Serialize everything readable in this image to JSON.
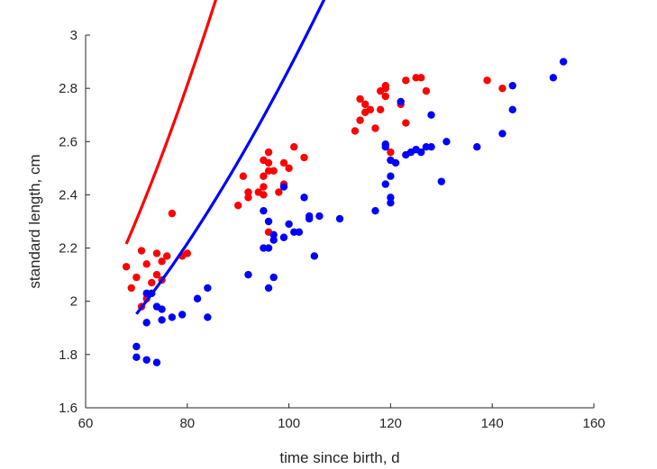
{
  "chart_data": {
    "type": "scatter",
    "xlabel": "time since birth, d",
    "ylabel": "standard length, cm",
    "xlim": [
      60,
      160
    ],
    "ylim": [
      1.6,
      3.0
    ],
    "xticks": [
      60,
      80,
      100,
      120,
      140,
      160
    ],
    "yticks": [
      1.6,
      1.8,
      2.0,
      2.2,
      2.4,
      2.6,
      2.8,
      3.0
    ],
    "xtick_labels": [
      "60",
      "80",
      "100",
      "120",
      "140",
      "160"
    ],
    "ytick_labels": [
      "1.6",
      "1.8",
      "2",
      "2.2",
      "2.4",
      "2.6",
      "2.8",
      "3"
    ],
    "grid": false,
    "series": [
      {
        "color": "#ff0000",
        "points": [
          [
            68,
            2.13
          ],
          [
            69,
            2.05
          ],
          [
            70,
            2.09
          ],
          [
            71,
            2.19
          ],
          [
            71,
            1.98
          ],
          [
            72,
            2.14
          ],
          [
            72,
            2.01
          ],
          [
            73,
            2.07
          ],
          [
            74,
            2.18
          ],
          [
            74,
            2.1
          ],
          [
            75,
            2.15
          ],
          [
            75,
            2.08
          ],
          [
            76,
            2.17
          ],
          [
            77,
            2.33
          ],
          [
            79,
            2.17
          ],
          [
            80,
            2.18
          ],
          [
            90,
            2.36
          ],
          [
            91,
            2.47
          ],
          [
            92,
            2.41
          ],
          [
            92,
            2.39
          ],
          [
            94,
            2.41
          ],
          [
            95,
            2.43
          ],
          [
            95,
            2.47
          ],
          [
            95,
            2.53
          ],
          [
            95,
            2.4
          ],
          [
            96,
            2.49
          ],
          [
            96,
            2.52
          ],
          [
            96,
            2.56
          ],
          [
            96,
            2.26
          ],
          [
            97,
            2.49
          ],
          [
            98,
            2.41
          ],
          [
            99,
            2.52
          ],
          [
            99,
            2.44
          ],
          [
            100,
            2.5
          ],
          [
            101,
            2.58
          ],
          [
            103,
            2.54
          ],
          [
            113,
            2.64
          ],
          [
            114,
            2.76
          ],
          [
            114,
            2.68
          ],
          [
            115,
            2.71
          ],
          [
            115,
            2.74
          ],
          [
            116,
            2.72
          ],
          [
            117,
            2.65
          ],
          [
            118,
            2.79
          ],
          [
            118,
            2.72
          ],
          [
            119,
            2.8
          ],
          [
            119,
            2.81
          ],
          [
            119,
            2.77
          ],
          [
            120,
            2.56
          ],
          [
            122,
            2.74
          ],
          [
            123,
            2.83
          ],
          [
            123,
            2.67
          ],
          [
            125,
            2.84
          ],
          [
            126,
            2.84
          ],
          [
            127,
            2.79
          ],
          [
            139,
            2.83
          ],
          [
            142,
            2.8
          ]
        ],
        "fit": {
          "x": [
            68,
            142
          ],
          "a": 1.44,
          "b": 0.00375,
          "power": 1.6
        }
      },
      {
        "color": "#0000ff",
        "points": [
          [
            70,
            1.83
          ],
          [
            70,
            1.79
          ],
          [
            72,
            2.03
          ],
          [
            72,
            1.92
          ],
          [
            72,
            1.78
          ],
          [
            73,
            2.03
          ],
          [
            74,
            1.98
          ],
          [
            74,
            1.77
          ],
          [
            75,
            1.97
          ],
          [
            75,
            1.93
          ],
          [
            77,
            1.94
          ],
          [
            79,
            1.95
          ],
          [
            82,
            2.01
          ],
          [
            84,
            2.05
          ],
          [
            84,
            1.94
          ],
          [
            92,
            2.1
          ],
          [
            95,
            2.34
          ],
          [
            95,
            2.2
          ],
          [
            96,
            2.3
          ],
          [
            96,
            2.2
          ],
          [
            96,
            2.05
          ],
          [
            97,
            2.25
          ],
          [
            97,
            2.23
          ],
          [
            97,
            2.09
          ],
          [
            99,
            2.24
          ],
          [
            99,
            2.43
          ],
          [
            100,
            2.29
          ],
          [
            101,
            2.26
          ],
          [
            102,
            2.26
          ],
          [
            103,
            2.39
          ],
          [
            104,
            2.32
          ],
          [
            104,
            2.31
          ],
          [
            105,
            2.17
          ],
          [
            106,
            2.32
          ],
          [
            110,
            2.31
          ],
          [
            117,
            2.34
          ],
          [
            119,
            2.59
          ],
          [
            119,
            2.58
          ],
          [
            119,
            2.44
          ],
          [
            120,
            2.53
          ],
          [
            120,
            2.47
          ],
          [
            120,
            2.39
          ],
          [
            120,
            2.37
          ],
          [
            121,
            2.52
          ],
          [
            122,
            2.75
          ],
          [
            123,
            2.55
          ],
          [
            124,
            2.56
          ],
          [
            125,
            2.57
          ],
          [
            126,
            2.56
          ],
          [
            127,
            2.58
          ],
          [
            128,
            2.7
          ],
          [
            128,
            2.58
          ],
          [
            130,
            2.45
          ],
          [
            131,
            2.6
          ],
          [
            137,
            2.58
          ],
          [
            142,
            2.63
          ],
          [
            144,
            2.81
          ],
          [
            144,
            2.72
          ],
          [
            152,
            2.84
          ],
          [
            154,
            2.9
          ]
        ],
        "fit": {
          "x": [
            70,
            154
          ],
          "a": 1.5,
          "b": 0.00196,
          "power": 1.6
        }
      }
    ]
  }
}
